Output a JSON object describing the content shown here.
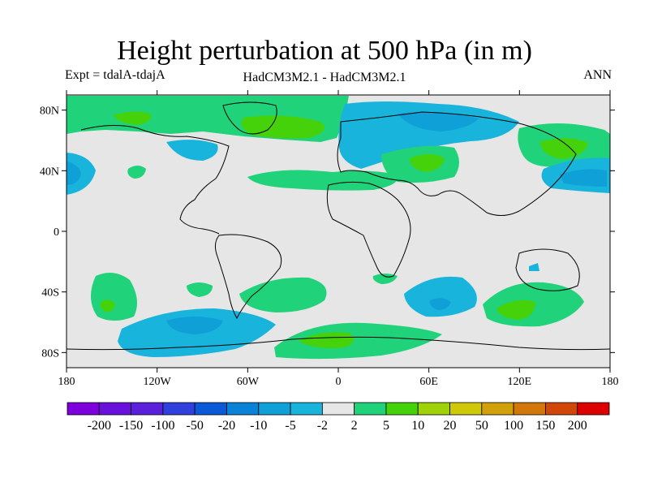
{
  "header": {
    "title": "Height perturbation at 500 hPa (in m)",
    "left_label": "Expt = tdalA-tdajA",
    "center_label": "HadCM3M2.1 - HadCM3M2.1",
    "right_label": "ANN"
  },
  "axes": {
    "lon_ticks": [
      "180",
      "120W",
      "60W",
      "0",
      "60E",
      "120E",
      "180"
    ],
    "lat_ticks": [
      "80N",
      "40N",
      "0",
      "40S",
      "80S"
    ]
  },
  "colorbar": {
    "labels": [
      "-200",
      "-150",
      "-100",
      "-50",
      "-20",
      "-10",
      "-5",
      "-2",
      "2",
      "5",
      "10",
      "20",
      "50",
      "100",
      "150",
      "200"
    ],
    "colors": [
      "#7d00dc",
      "#6a10dc",
      "#5a20dc",
      "#3040dc",
      "#0a5ad8",
      "#0a82d8",
      "#10a0d8",
      "#18b4dc",
      "#e6e6e6",
      "#20d27a",
      "#46d20a",
      "#a0d20a",
      "#d2c80a",
      "#d2a00a",
      "#d2780a",
      "#d2460a",
      "#dc0000"
    ]
  },
  "chart_data": {
    "type": "map",
    "field": "500 hPa geopotential height perturbation (m)",
    "projection": "cylindrical equidistant",
    "lon_range": [
      -180,
      180
    ],
    "lat_range": [
      -90,
      90
    ],
    "colors_meaning": {
      "gray": "-2 to 2",
      "green": "2 to 5",
      "light_green": "5 to 10",
      "cyan": "-5 to -2",
      "blue": "-10 to -5"
    }
  }
}
